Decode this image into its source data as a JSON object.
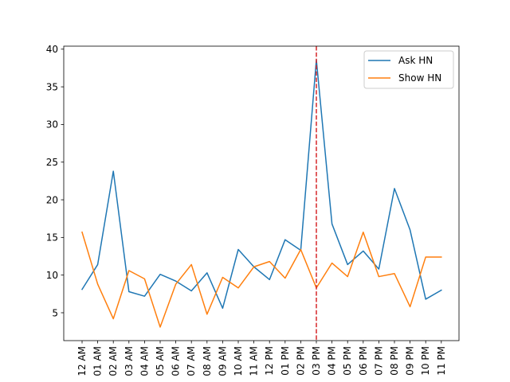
{
  "chart_data": {
    "type": "line",
    "categories": [
      "12 AM",
      "01 AM",
      "02 AM",
      "03 AM",
      "04 AM",
      "05 AM",
      "06 AM",
      "07 AM",
      "08 AM",
      "09 AM",
      "10 AM",
      "11 AM",
      "12 PM",
      "01 PM",
      "02 PM",
      "03 PM",
      "04 PM",
      "05 PM",
      "06 PM",
      "07 PM",
      "08 PM",
      "09 PM",
      "10 PM",
      "11 PM"
    ],
    "series": [
      {
        "name": "Ask HN",
        "color": "#1f77b4",
        "values": [
          8.1,
          11.4,
          23.8,
          7.8,
          7.2,
          10.1,
          9.2,
          7.9,
          10.3,
          5.6,
          13.4,
          11.1,
          9.4,
          14.7,
          13.3,
          38.6,
          16.8,
          11.4,
          13.2,
          10.8,
          21.5,
          16.0,
          6.8,
          8.0
        ]
      },
      {
        "name": "Show HN",
        "color": "#ff7f0e",
        "values": [
          15.7,
          8.8,
          4.2,
          10.6,
          9.5,
          3.1,
          8.8,
          11.4,
          4.8,
          9.7,
          8.3,
          11.1,
          11.8,
          9.6,
          13.4,
          8.3,
          11.6,
          9.8,
          15.7,
          9.8,
          10.2,
          5.8,
          12.4,
          12.4
        ]
      }
    ],
    "yticks": [
      5,
      10,
      15,
      20,
      25,
      30,
      35,
      40
    ],
    "ylim": [
      1.3,
      40.4
    ],
    "vline": {
      "category": "03 PM",
      "color": "#d62728",
      "style": "dashed"
    },
    "legend": {
      "placement": "top-right",
      "entries": [
        "Ask HN",
        "Show HN"
      ]
    },
    "grid": false,
    "title": "",
    "xlabel": "",
    "ylabel": ""
  }
}
